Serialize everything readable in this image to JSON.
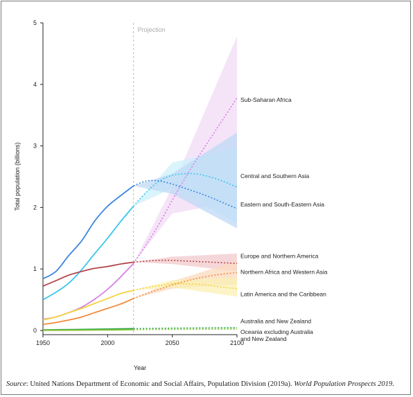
{
  "chart_data": {
    "type": "line",
    "xlabel": "Year",
    "ylabel": "Total population (billions)",
    "xlim": [
      1950,
      2100
    ],
    "ylim": [
      0,
      5
    ],
    "xticks": [
      "1950",
      "2000",
      "2050",
      "2100"
    ],
    "yticks": [
      "0",
      "1",
      "2",
      "3",
      "4",
      "5"
    ],
    "projection_start": 2020,
    "projection_label": "Projection",
    "legend_placement": "right-end labels",
    "series": [
      {
        "name": "Sub-Saharan Africa",
        "color": "#d77ee6",
        "band_color": "#f1dbf6",
        "observed": [
          [
            1950,
            0.18
          ],
          [
            1960,
            0.22
          ],
          [
            1970,
            0.29
          ],
          [
            1980,
            0.38
          ],
          [
            1990,
            0.51
          ],
          [
            2000,
            0.67
          ],
          [
            2010,
            0.87
          ],
          [
            2020,
            1.09
          ]
        ],
        "projected": [
          [
            2020,
            1.09
          ],
          [
            2030,
            1.4
          ],
          [
            2040,
            1.74
          ],
          [
            2050,
            2.12
          ],
          [
            2060,
            2.48
          ],
          [
            2070,
            2.82
          ],
          [
            2080,
            3.14
          ],
          [
            2090,
            3.46
          ],
          [
            2100,
            3.78
          ]
        ],
        "lower": [
          [
            2020,
            1.09
          ],
          [
            2050,
            1.9
          ],
          [
            2100,
            2.1
          ]
        ],
        "upper": [
          [
            2020,
            1.09
          ],
          [
            2050,
            2.33
          ],
          [
            2100,
            4.78
          ]
        ]
      },
      {
        "name": "Central and Southern Asia",
        "color": "#3cc6ec",
        "band_color": "#cdf0fb",
        "observed": [
          [
            1950,
            0.5
          ],
          [
            1960,
            0.62
          ],
          [
            1970,
            0.77
          ],
          [
            1980,
            0.99
          ],
          [
            1990,
            1.25
          ],
          [
            2000,
            1.5
          ],
          [
            2010,
            1.77
          ],
          [
            2020,
            2.02
          ]
        ],
        "projected": [
          [
            2020,
            2.02
          ],
          [
            2030,
            2.25
          ],
          [
            2040,
            2.43
          ],
          [
            2050,
            2.52
          ],
          [
            2060,
            2.55
          ],
          [
            2070,
            2.54
          ],
          [
            2080,
            2.49
          ],
          [
            2090,
            2.42
          ],
          [
            2100,
            2.33
          ]
        ],
        "lower": [
          [
            2020,
            2.02
          ],
          [
            2050,
            2.31
          ],
          [
            2100,
            1.75
          ]
        ],
        "upper": [
          [
            2020,
            2.02
          ],
          [
            2050,
            2.73
          ],
          [
            2100,
            2.98
          ]
        ]
      },
      {
        "name": "Eastern and South-Eastern Asia",
        "color": "#3d86dc",
        "band_color": "#bfdaf6",
        "observed": [
          [
            1950,
            0.84
          ],
          [
            1960,
            0.96
          ],
          [
            1970,
            1.22
          ],
          [
            1980,
            1.46
          ],
          [
            1990,
            1.78
          ],
          [
            2000,
            2.02
          ],
          [
            2010,
            2.19
          ],
          [
            2020,
            2.35
          ]
        ],
        "projected": [
          [
            2020,
            2.35
          ],
          [
            2030,
            2.43
          ],
          [
            2040,
            2.43
          ],
          [
            2050,
            2.38
          ],
          [
            2060,
            2.31
          ],
          [
            2070,
            2.24
          ],
          [
            2080,
            2.16
          ],
          [
            2090,
            2.07
          ],
          [
            2100,
            1.98
          ]
        ],
        "lower": [
          [
            2020,
            2.35
          ],
          [
            2050,
            2.22
          ],
          [
            2100,
            1.66
          ]
        ],
        "upper": [
          [
            2020,
            2.35
          ],
          [
            2050,
            2.55
          ],
          [
            2100,
            3.22
          ]
        ]
      },
      {
        "name": "Europe and Northern America",
        "color": "#b5474c",
        "band_color": "#f1c9cc",
        "observed": [
          [
            1950,
            0.72
          ],
          [
            1960,
            0.81
          ],
          [
            1970,
            0.9
          ],
          [
            1980,
            0.96
          ],
          [
            1990,
            1.01
          ],
          [
            2000,
            1.04
          ],
          [
            2010,
            1.08
          ],
          [
            2020,
            1.11
          ]
        ],
        "projected": [
          [
            2020,
            1.11
          ],
          [
            2030,
            1.13
          ],
          [
            2040,
            1.14
          ],
          [
            2050,
            1.14
          ],
          [
            2060,
            1.13
          ],
          [
            2070,
            1.12
          ],
          [
            2080,
            1.11
          ],
          [
            2090,
            1.1
          ],
          [
            2100,
            1.09
          ]
        ],
        "lower": [
          [
            2020,
            1.11
          ],
          [
            2050,
            1.08
          ],
          [
            2100,
            0.96
          ]
        ],
        "upper": [
          [
            2020,
            1.11
          ],
          [
            2050,
            1.2
          ],
          [
            2100,
            1.25
          ]
        ]
      },
      {
        "name": "Northern Africa and Western Asia",
        "color": "#f08a3a",
        "band_color": "#fbd9bd",
        "observed": [
          [
            1950,
            0.1
          ],
          [
            1960,
            0.13
          ],
          [
            1970,
            0.17
          ],
          [
            1980,
            0.22
          ],
          [
            1990,
            0.29
          ],
          [
            2000,
            0.36
          ],
          [
            2010,
            0.43
          ],
          [
            2020,
            0.52
          ]
        ],
        "projected": [
          [
            2020,
            0.52
          ],
          [
            2030,
            0.6
          ],
          [
            2040,
            0.67
          ],
          [
            2050,
            0.74
          ],
          [
            2060,
            0.8
          ],
          [
            2070,
            0.85
          ],
          [
            2080,
            0.89
          ],
          [
            2090,
            0.92
          ],
          [
            2100,
            0.94
          ]
        ],
        "lower": [
          [
            2020,
            0.52
          ],
          [
            2050,
            0.68
          ],
          [
            2100,
            0.75
          ]
        ],
        "upper": [
          [
            2020,
            0.52
          ],
          [
            2050,
            0.8
          ],
          [
            2100,
            1.13
          ]
        ]
      },
      {
        "name": "Latin America and the Caribbean",
        "color": "#f3d33a",
        "band_color": "#fbf0b4",
        "observed": [
          [
            1950,
            0.17
          ],
          [
            1960,
            0.22
          ],
          [
            1970,
            0.29
          ],
          [
            1980,
            0.36
          ],
          [
            1990,
            0.44
          ],
          [
            2000,
            0.52
          ],
          [
            2010,
            0.6
          ],
          [
            2020,
            0.65
          ]
        ],
        "projected": [
          [
            2020,
            0.65
          ],
          [
            2030,
            0.7
          ],
          [
            2040,
            0.73
          ],
          [
            2050,
            0.76
          ],
          [
            2060,
            0.76
          ],
          [
            2070,
            0.75
          ],
          [
            2080,
            0.73
          ],
          [
            2090,
            0.7
          ],
          [
            2100,
            0.68
          ]
        ],
        "lower": [
          [
            2020,
            0.65
          ],
          [
            2050,
            0.7
          ],
          [
            2100,
            0.55
          ]
        ],
        "upper": [
          [
            2020,
            0.65
          ],
          [
            2050,
            0.82
          ],
          [
            2100,
            0.86
          ]
        ]
      },
      {
        "name": "Australia and New Zealand",
        "color": "#2fa84a",
        "band_color": "#d6efd9",
        "observed": [
          [
            1950,
            0.01
          ],
          [
            1970,
            0.015
          ],
          [
            1990,
            0.02
          ],
          [
            2020,
            0.03
          ]
        ],
        "projected": [
          [
            2020,
            0.03
          ],
          [
            2050,
            0.038
          ],
          [
            2100,
            0.045
          ]
        ],
        "lower": [
          [
            2020,
            0.03
          ],
          [
            2100,
            0.035
          ]
        ],
        "upper": [
          [
            2020,
            0.03
          ],
          [
            2100,
            0.055
          ]
        ]
      },
      {
        "name": "Oceania excluding Australia and New Zealand",
        "color": "#8fc43c",
        "band_color": "#e6f3d2",
        "observed": [
          [
            1950,
            0.002
          ],
          [
            1980,
            0.005
          ],
          [
            2000,
            0.008
          ],
          [
            2020,
            0.012
          ]
        ],
        "projected": [
          [
            2020,
            0.012
          ],
          [
            2050,
            0.018
          ],
          [
            2100,
            0.022
          ]
        ],
        "lower": [
          [
            2020,
            0.012
          ],
          [
            2100,
            0.015
          ]
        ],
        "upper": [
          [
            2020,
            0.012
          ],
          [
            2100,
            0.03
          ]
        ]
      }
    ],
    "labels": [
      {
        "lines": [
          "Sub-Saharan Africa"
        ],
        "y": 3.75
      },
      {
        "lines": [
          "Central and Southern Asia"
        ],
        "y": 2.51
      },
      {
        "lines": [
          "Eastern and South-Eastern Asia"
        ],
        "y": 2.05
      },
      {
        "lines": [
          "Europe and Northern America"
        ],
        "y": 1.21
      },
      {
        "lines": [
          "Northern Africa and Western Asia"
        ],
        "y": 0.95
      },
      {
        "lines": [
          "Latin America and the Caribbean"
        ],
        "y": 0.59
      },
      {
        "lines": [
          "Australia and New Zealand"
        ],
        "y": 0.15
      },
      {
        "lines": [
          "Oceania excluding Australia",
          "and New Zealand"
        ],
        "y": -0.02
      }
    ]
  },
  "source": {
    "prefix": "Source",
    "body": ": United Nations Department of Economic and Social Affairs, Population Division (2019a). ",
    "title": "World Population Prospects 2019",
    "suffix": "."
  }
}
